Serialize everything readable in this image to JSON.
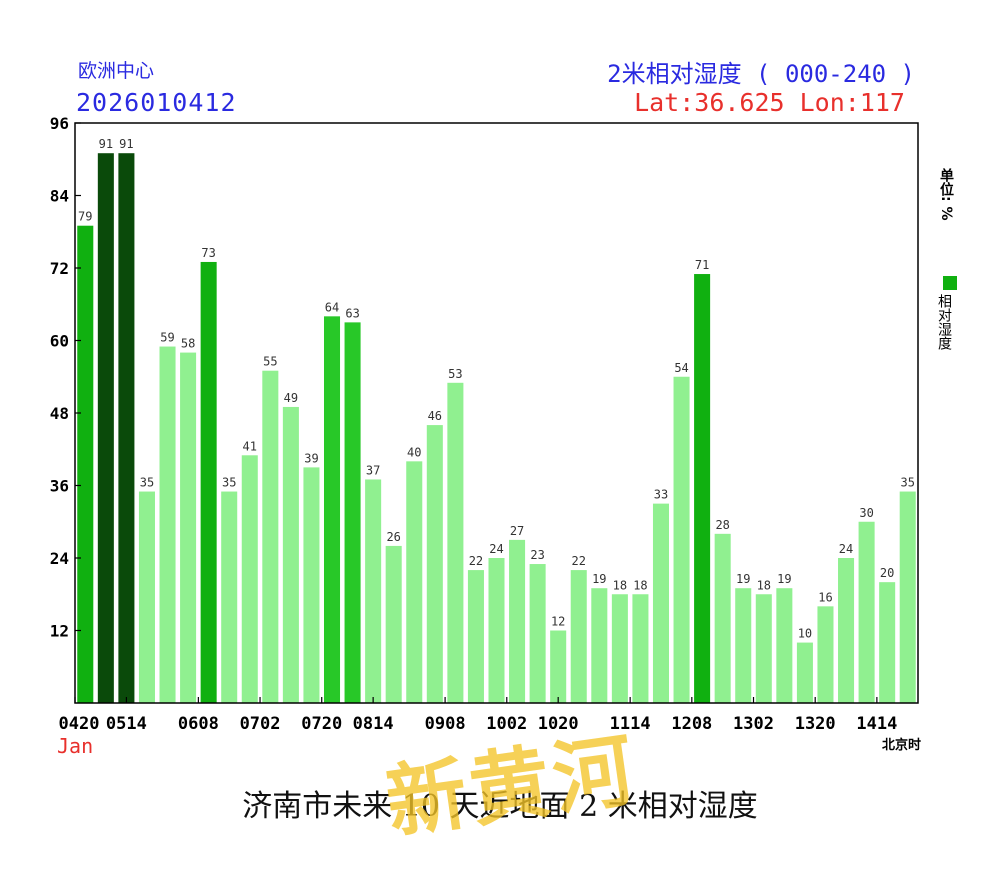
{
  "header": {
    "source": "欧洲中心",
    "run_time": "2026010412",
    "title": "2米相对湿度 ( 000-240 )",
    "location": "Lat:36.625  Lon:117"
  },
  "side": {
    "unit": "单位: %",
    "legend_label": "相对湿度",
    "legend_color": "#10b010"
  },
  "x_extra": {
    "month_label": "Jan",
    "timezone": "北京时"
  },
  "caption": "济南市未来 10 天近地面 2 米相对湿度",
  "watermark": "新黄河",
  "chart_data": {
    "type": "bar",
    "title": "2米相对湿度 ( 000-240 )",
    "ylim": [
      0,
      96
    ],
    "yticks": [
      12,
      24,
      36,
      48,
      60,
      72,
      84,
      96
    ],
    "grid": false,
    "legend": "right",
    "x_tick_labels": [
      "0420",
      "0514",
      "0608",
      "0702",
      "0720",
      "0814",
      "0908",
      "1002",
      "1020",
      "1114",
      "1208",
      "1302",
      "1320",
      "1414"
    ],
    "tick_bar_index": [
      0,
      2.5,
      6,
      9,
      12,
      14.5,
      18,
      21,
      23.5,
      27,
      30,
      33,
      36,
      39
    ],
    "values": [
      79,
      91,
      91,
      35,
      59,
      58,
      73,
      35,
      41,
      55,
      49,
      39,
      64,
      63,
      37,
      26,
      40,
      46,
      53,
      22,
      24,
      27,
      23,
      12,
      22,
      19,
      18,
      18,
      33,
      54,
      71,
      28,
      19,
      18,
      19,
      10,
      16,
      24,
      30,
      20,
      35
    ],
    "color_scale": {
      "ge90": "#0a4a0a",
      "ge70": "#10b010",
      "ge60": "#28c828",
      "lt60": "#90f090"
    }
  }
}
